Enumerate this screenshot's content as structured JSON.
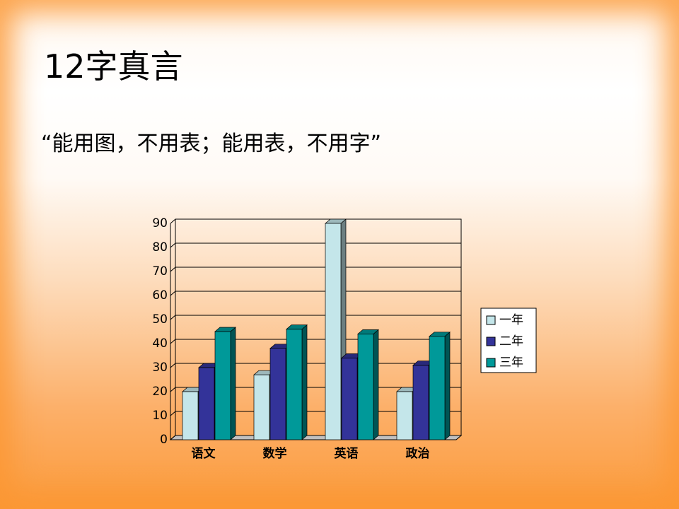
{
  "header": {
    "title": "12字真言",
    "subtitle": "“能用图，不用表；能用表，不用字”"
  },
  "chart_data": {
    "type": "bar3d",
    "categories": [
      "语文",
      "数学",
      "英语",
      "政治"
    ],
    "series": [
      {
        "name": "一年",
        "color": "#c4e6ea",
        "values": [
          20,
          27,
          90,
          20
        ]
      },
      {
        "name": "二年",
        "color": "#333399",
        "values": [
          30,
          38,
          34,
          31
        ]
      },
      {
        "name": "三年",
        "color": "#009999",
        "values": [
          45,
          46,
          44,
          43
        ]
      }
    ],
    "ylim": [
      0,
      90
    ],
    "yticks": [
      0,
      10,
      20,
      30,
      40,
      50,
      60,
      70,
      80,
      90
    ],
    "grid": true,
    "legend": "right"
  }
}
